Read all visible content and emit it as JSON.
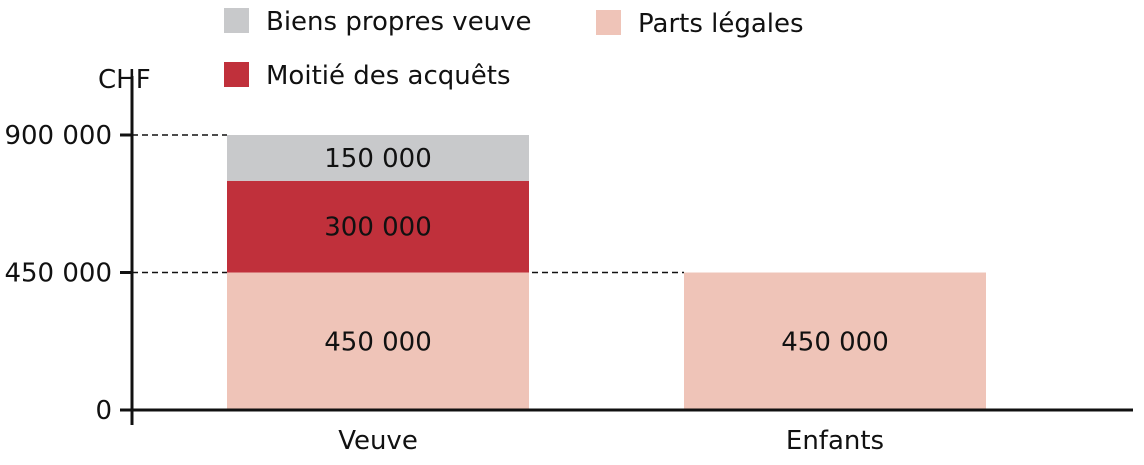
{
  "chart_data": {
    "type": "bar",
    "stacked": true,
    "title": "",
    "xlabel": "",
    "ylabel": "CHF",
    "ylim": [
      0,
      900000
    ],
    "yticks": [
      {
        "value": 0,
        "label": "0"
      },
      {
        "value": 450000,
        "label": "450 000"
      },
      {
        "value": 900000,
        "label": "900 000"
      }
    ],
    "reference_lines": [
      450000,
      900000
    ],
    "categories": [
      "Veuve",
      "Enfants"
    ],
    "series": [
      {
        "name": "Parts légales",
        "color": "#efc4b8",
        "text_color": "#111111",
        "values": [
          450000,
          450000
        ],
        "labels": [
          "450 000",
          "450 000"
        ]
      },
      {
        "name": "Moitié des acquêts",
        "color": "#c0303b",
        "text_color": "#ffffff",
        "values": [
          300000,
          0
        ],
        "labels": [
          "300 000",
          ""
        ]
      },
      {
        "name": "Biens propres veuve",
        "color": "#c8c9cb",
        "text_color": "#111111",
        "values": [
          150000,
          0
        ],
        "labels": [
          "150 000",
          ""
        ]
      }
    ],
    "legend_entries": [
      "Biens propres veuve",
      "Parts légales",
      "Moitié des acquêts"
    ]
  }
}
